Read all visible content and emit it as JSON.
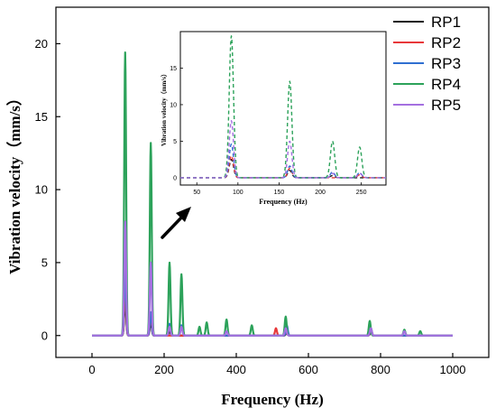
{
  "colors": {
    "RP1": "#1a1a1a",
    "RP2": "#e8383a",
    "RP3": "#2f6fd1",
    "RP4": "#2ca25a",
    "RP5": "#a470e0",
    "axis": "#000000",
    "arrow": "#000000"
  },
  "chart_data": [
    {
      "id": "main",
      "type": "line",
      "xlabel": "Frequency (Hz)",
      "ylabel": "Vibration velocity（mm/s）",
      "xlim": [
        -100,
        1100
      ],
      "ylim": [
        -1.5,
        22.5
      ],
      "xticks": [
        0,
        200,
        400,
        600,
        800,
        1000
      ],
      "xtick_labels": [
        "0",
        "200",
        "400",
        "600",
        "800",
        "1000"
      ],
      "yticks": [
        0,
        5,
        10,
        15,
        20
      ],
      "ytick_labels": [
        "0",
        "5",
        "10",
        "15",
        "20"
      ],
      "legend": {
        "position": "top-right",
        "entries": [
          "RP1",
          "RP2",
          "RP3",
          "RP4",
          "RP5"
        ]
      },
      "series": [
        {
          "name": "RP1",
          "peaks": [
            {
              "x": 92,
              "y": 2.5
            },
            {
              "x": 163,
              "y": 1.0
            },
            {
              "x": 215,
              "y": 0.3
            },
            {
              "x": 540,
              "y": 0.2
            },
            {
              "x": 773,
              "y": 0.2
            }
          ]
        },
        {
          "name": "RP2",
          "peaks": [
            {
              "x": 92,
              "y": 3.0
            },
            {
              "x": 163,
              "y": 1.3
            },
            {
              "x": 510,
              "y": 0.5
            },
            {
              "x": 540,
              "y": 0.5
            },
            {
              "x": 773,
              "y": 0.5
            }
          ]
        },
        {
          "name": "RP3",
          "peaks": [
            {
              "x": 92,
              "y": 4.6
            },
            {
              "x": 163,
              "y": 1.6
            },
            {
              "x": 215,
              "y": 0.8
            },
            {
              "x": 248,
              "y": 0.7
            },
            {
              "x": 540,
              "y": 0.7
            },
            {
              "x": 773,
              "y": 0.5
            }
          ]
        },
        {
          "name": "RP4",
          "peaks": [
            {
              "x": 92,
              "y": 19.4
            },
            {
              "x": 163,
              "y": 13.2
            },
            {
              "x": 215,
              "y": 5.0
            },
            {
              "x": 248,
              "y": 4.2
            },
            {
              "x": 298,
              "y": 0.6
            },
            {
              "x": 318,
              "y": 0.9
            },
            {
              "x": 373,
              "y": 1.1
            },
            {
              "x": 443,
              "y": 0.7
            },
            {
              "x": 537,
              "y": 1.3
            },
            {
              "x": 770,
              "y": 1.0
            },
            {
              "x": 866,
              "y": 0.4
            },
            {
              "x": 910,
              "y": 0.3
            }
          ]
        },
        {
          "name": "RP5",
          "peaks": [
            {
              "x": 92,
              "y": 7.8
            },
            {
              "x": 163,
              "y": 5.0
            },
            {
              "x": 215,
              "y": 0.6
            },
            {
              "x": 248,
              "y": 0.6
            },
            {
              "x": 373,
              "y": 0.3
            },
            {
              "x": 537,
              "y": 0.5
            },
            {
              "x": 773,
              "y": 0.5
            },
            {
              "x": 866,
              "y": 0.3
            }
          ]
        }
      ]
    },
    {
      "id": "inset",
      "type": "line",
      "line_style": "dashed",
      "xlabel": "Frequency (Hz)",
      "ylabel": "Vibration velocity（mm/s）",
      "xlim": [
        30,
        280
      ],
      "ylim": [
        -1,
        20
      ],
      "xticks": [
        50,
        100,
        150,
        200,
        250
      ],
      "xtick_labels": [
        "50",
        "100",
        "150",
        "200",
        "250"
      ],
      "yticks": [
        0,
        5,
        10,
        15
      ],
      "ytick_labels": [
        "0",
        "5",
        "10",
        "15"
      ],
      "series": [
        {
          "name": "RP1",
          "peaks": [
            {
              "x": 92,
              "y": 2.5
            },
            {
              "x": 163,
              "y": 1.0
            },
            {
              "x": 215,
              "y": 0.3
            }
          ]
        },
        {
          "name": "RP2",
          "peaks": [
            {
              "x": 92,
              "y": 3.0
            },
            {
              "x": 163,
              "y": 1.3
            },
            {
              "x": 248,
              "y": 0.4
            }
          ]
        },
        {
          "name": "RP3",
          "peaks": [
            {
              "x": 92,
              "y": 4.6
            },
            {
              "x": 163,
              "y": 1.6
            },
            {
              "x": 215,
              "y": 0.8
            },
            {
              "x": 248,
              "y": 0.7
            }
          ]
        },
        {
          "name": "RP4",
          "peaks": [
            {
              "x": 92,
              "y": 19.4
            },
            {
              "x": 163,
              "y": 13.2
            },
            {
              "x": 215,
              "y": 5.0
            },
            {
              "x": 248,
              "y": 4.2
            }
          ]
        },
        {
          "name": "RP5",
          "peaks": [
            {
              "x": 92,
              "y": 7.8
            },
            {
              "x": 163,
              "y": 5.0
            },
            {
              "x": 215,
              "y": 0.6
            },
            {
              "x": 248,
              "y": 0.6
            }
          ]
        }
      ]
    }
  ]
}
